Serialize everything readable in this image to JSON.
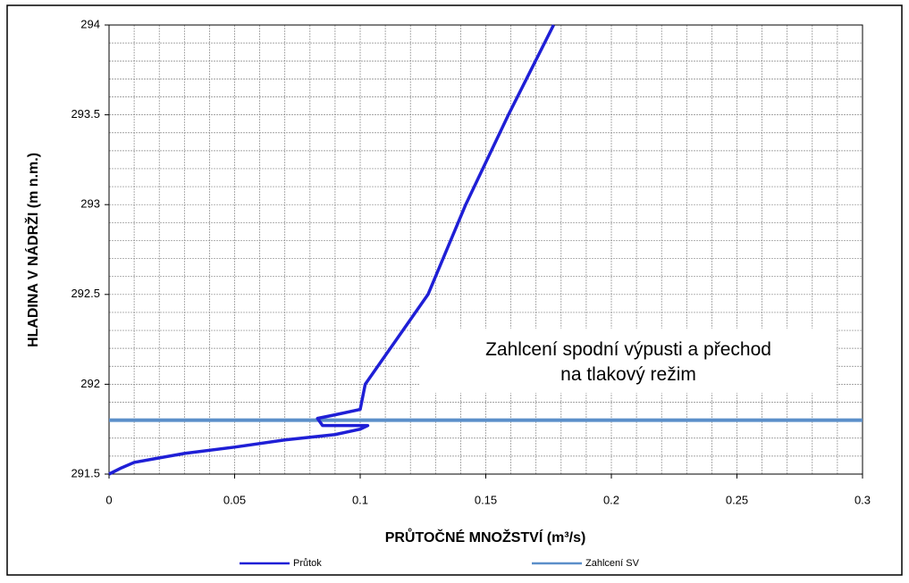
{
  "chart_data": {
    "type": "line",
    "annotation": "Zahlcení spodní výpusti a přechod na tlakový režim",
    "xlabel": "PRŮTOČNÉ MNOŽSTVÍ (m³/s)",
    "ylabel": "HLADINA V NÁDRŽI (m n.m.)",
    "xlim": [
      0,
      0.3
    ],
    "ylim": [
      291.5,
      294
    ],
    "xticks": [
      0,
      0.05,
      0.1,
      0.15,
      0.2,
      0.25,
      0.3
    ],
    "yticks": [
      291.5,
      292,
      292.5,
      293,
      293.5,
      294
    ],
    "xgrid": [
      0.01,
      0.02,
      0.03,
      0.04,
      0.05,
      0.06,
      0.07,
      0.08,
      0.09,
      0.1,
      0.11,
      0.12,
      0.13,
      0.14,
      0.15,
      0.16,
      0.17,
      0.18,
      0.19,
      0.2,
      0.21,
      0.22,
      0.23,
      0.24,
      0.25,
      0.26,
      0.27,
      0.28,
      0.29
    ],
    "ygrid": [
      291.6,
      291.7,
      291.8,
      291.9,
      292,
      292.1,
      292.2,
      292.3,
      292.4,
      292.5,
      292.6,
      292.7,
      292.8,
      292.9,
      293,
      293.1,
      293.2,
      293.3,
      293.4,
      293.5,
      293.6,
      293.7,
      293.8,
      293.9
    ],
    "grid": true,
    "legend": "bottom",
    "series": [
      {
        "name": "Průtok",
        "color": "#1f1fd6",
        "width": 3.5,
        "x": [
          0,
          0.005,
          0.01,
          0.02,
          0.03,
          0.05,
          0.07,
          0.09,
          0.1,
          0.103,
          0.085,
          0.083,
          0.09,
          0.1,
          0.102,
          0.112,
          0.127,
          0.142,
          0.159,
          0.168,
          0.177
        ],
        "values": [
          291.5,
          291.535,
          291.565,
          291.59,
          291.615,
          291.65,
          291.69,
          291.72,
          291.75,
          291.77,
          291.77,
          291.81,
          291.83,
          291.86,
          292,
          292.2,
          292.5,
          293,
          293.5,
          293.75,
          294
        ]
      },
      {
        "name": "Zahlcení SV",
        "color": "#5b8fc9",
        "width": 4,
        "x": [
          0,
          0.3
        ],
        "values": [
          291.8,
          291.8
        ]
      }
    ]
  }
}
